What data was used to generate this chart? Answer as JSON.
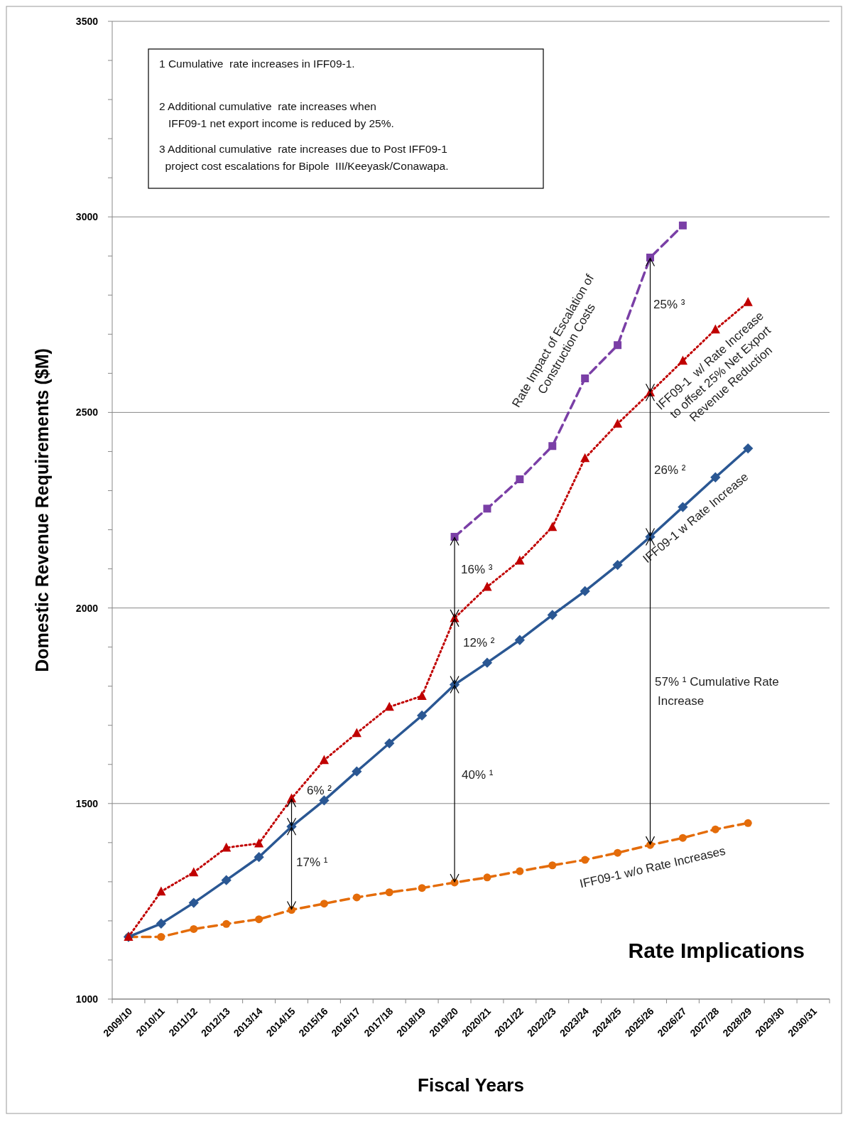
{
  "chart_data": {
    "type": "line",
    "xlabel": "Fiscal Years",
    "ylabel": "Domestic Revenue Requirements ($M)",
    "categories": [
      "2009/10",
      "2010/11",
      "2011/12",
      "2012/13",
      "2013/14",
      "2014/15",
      "2015/16",
      "2016/17",
      "2017/18",
      "2018/19",
      "2019/20",
      "2020/21",
      "2021/22",
      "2022/23",
      "2023/24",
      "2024/25",
      "2025/26",
      "2026/27",
      "2027/28",
      "2028/29",
      "2029/30",
      "2030/31"
    ],
    "ylim": [
      1000,
      3500
    ],
    "yticks": [
      1000,
      {
        "value": 1100,
        "label": null
      },
      {
        "value": 1200,
        "label": null
      },
      {
        "value": 1300,
        "label": null
      },
      {
        "value": 1400,
        "label": null
      },
      1500,
      {
        "value": 1600,
        "label": null
      },
      {
        "value": 1700,
        "label": null
      },
      {
        "value": 1800,
        "label": null
      },
      {
        "value": 1900,
        "label": null
      },
      2000,
      {
        "value": 2100,
        "label": null
      },
      {
        "value": 2200,
        "label": null
      },
      {
        "value": 2300,
        "label": null
      },
      {
        "value": 2400,
        "label": null
      },
      2500,
      {
        "value": 2600,
        "label": null
      },
      {
        "value": 2700,
        "label": null
      },
      {
        "value": 2800,
        "label": null
      },
      {
        "value": 2900,
        "label": null
      },
      3000,
      {
        "value": 3100,
        "label": null
      },
      {
        "value": 3200,
        "label": null
      },
      {
        "value": 3300,
        "label": null
      },
      {
        "value": 3400,
        "label": null
      },
      3500
    ],
    "grid": "y",
    "legend": false,
    "series": [
      {
        "name": "IFF09-1 w/o Rate Increases",
        "color": "#e46c0a",
        "marker": "circle",
        "line_style": "dashed",
        "values": [
          1159,
          1159,
          1179,
          1192,
          1204,
          1228,
          1244,
          1260,
          1273,
          1284,
          1298,
          1311,
          1327,
          1342,
          1356,
          1374,
          1394,
          1412,
          1434,
          1450,
          null,
          null
        ]
      },
      {
        "name": "IFF09-1 w Rate Increase",
        "color": "#2a5793",
        "marker": "diamond",
        "line_style": "solid",
        "values": [
          1159,
          1193,
          1246,
          1304,
          1363,
          1441,
          1508,
          1582,
          1654,
          1725,
          1804,
          1860,
          1918,
          1982,
          2043,
          2110,
          2182,
          2258,
          2334,
          2408,
          null,
          null
        ]
      },
      {
        "name": "IFF09-1  w/ Rate Increase\nto offset 25% Net Export\nRevenue Reduction",
        "color": "#c00000",
        "marker": "triangle",
        "line_style": "dotted",
        "values": [
          1159,
          1275,
          1324,
          1387,
          1398,
          1513,
          1611,
          1680,
          1747,
          1775,
          1974,
          2054,
          2121,
          2207,
          2383,
          2471,
          2551,
          2632,
          2712,
          2782,
          null,
          null
        ]
      },
      {
        "name": "Rate Impact of Escalation of\nConstruction Costs",
        "color": "#7a3fa6",
        "marker": "square",
        "line_style": "dashed",
        "values": [
          null,
          null,
          null,
          null,
          null,
          null,
          null,
          null,
          null,
          null,
          2182,
          2254,
          2329,
          2414,
          2587,
          2672,
          2896,
          2978,
          null,
          null,
          null,
          null
        ]
      }
    ],
    "annotations": [
      "1 Cumulative  rate increases in IFF09-1.",
      "2 Additional cumulative  rate increases when\n   IFF09-1 net export income is reduced by 25%.",
      "3 Additional cumulative  rate increases due to Post IFF09-1\n  project cost escalations for Bipole  III/Keeyask/Conawapa.",
      "Rate Implications",
      "17% ¹",
      "6% ²",
      "40% ¹",
      "12% ²",
      "16% ³",
      "57% ¹ Cumulative Rate\nIncrease",
      "26% ²",
      "25% ³"
    ]
  }
}
